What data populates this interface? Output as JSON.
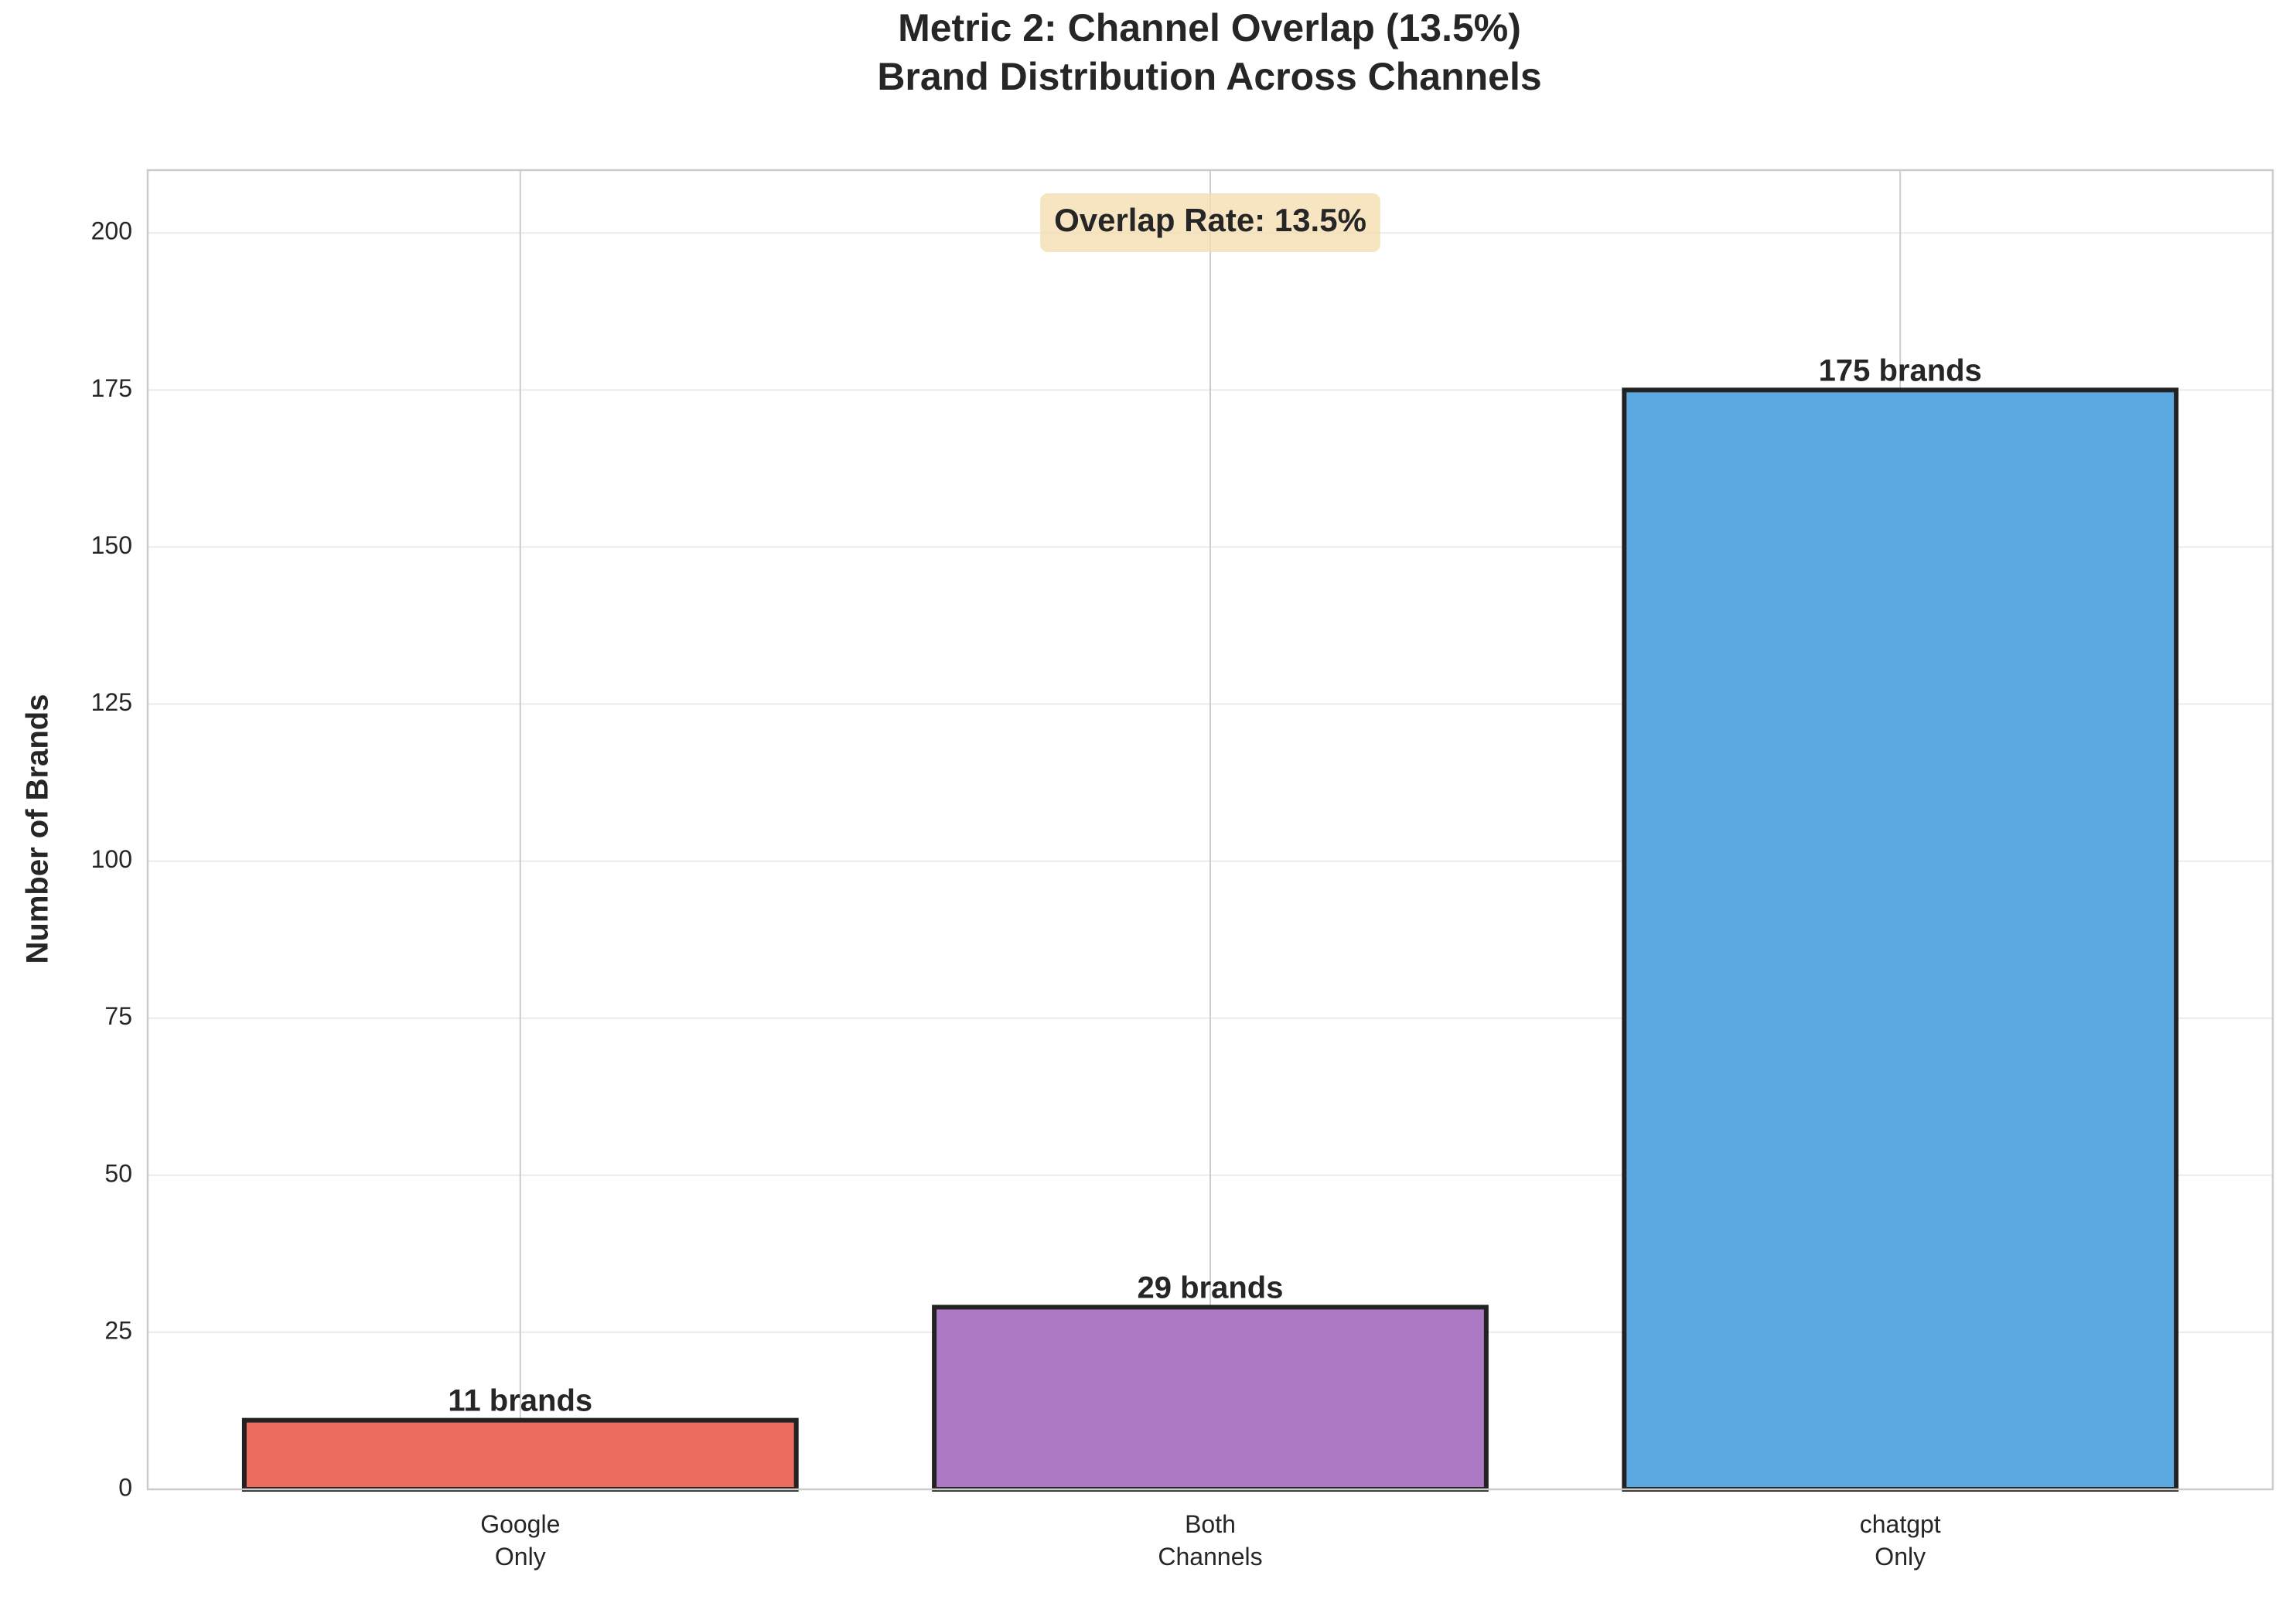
{
  "chart_data": {
    "type": "bar",
    "title": "Metric 2: Channel Overlap (13.5%)\nBrand Distribution Across Channels",
    "ylabel": "Number of Brands",
    "annotation": "Overlap Rate: 13.5%",
    "categories": [
      "Google\nOnly",
      "Both\nChannels",
      "chatgpt\nOnly"
    ],
    "values": [
      11,
      29,
      175
    ],
    "value_labels": [
      "11 brands",
      "29 brands",
      "175 brands"
    ],
    "colors": [
      "#eb6d5f",
      "#ac7ac4",
      "#5ca9e2"
    ],
    "ylim": [
      0,
      210
    ],
    "yticks": [
      0,
      25,
      50,
      75,
      100,
      125,
      150,
      175,
      200
    ],
    "grid": true
  }
}
